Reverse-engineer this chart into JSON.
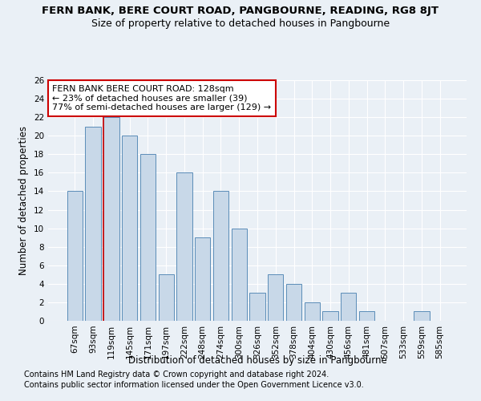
{
  "title": "FERN BANK, BERE COURT ROAD, PANGBOURNE, READING, RG8 8JT",
  "subtitle": "Size of property relative to detached houses in Pangbourne",
  "xlabel": "Distribution of detached houses by size in Pangbourne",
  "ylabel": "Number of detached properties",
  "categories": [
    "67sqm",
    "93sqm",
    "119sqm",
    "145sqm",
    "171sqm",
    "197sqm",
    "222sqm",
    "248sqm",
    "274sqm",
    "300sqm",
    "326sqm",
    "352sqm",
    "378sqm",
    "404sqm",
    "430sqm",
    "456sqm",
    "481sqm",
    "507sqm",
    "533sqm",
    "559sqm",
    "585sqm"
  ],
  "values": [
    14,
    21,
    22,
    20,
    18,
    5,
    16,
    9,
    14,
    10,
    3,
    5,
    4,
    2,
    1,
    3,
    1,
    0,
    0,
    1,
    0
  ],
  "bar_color": "#c8d8e8",
  "bar_edge_color": "#5b8db8",
  "red_line_x": 1.575,
  "annotation_text": "FERN BANK BERE COURT ROAD: 128sqm\n← 23% of detached houses are smaller (39)\n77% of semi-detached houses are larger (129) →",
  "annotation_box_color": "#ffffff",
  "annotation_box_edge": "#cc0000",
  "red_line_color": "#cc0000",
  "ylim": [
    0,
    26
  ],
  "yticks": [
    0,
    2,
    4,
    6,
    8,
    10,
    12,
    14,
    16,
    18,
    20,
    22,
    24,
    26
  ],
  "footnote1": "Contains HM Land Registry data © Crown copyright and database right 2024.",
  "footnote2": "Contains public sector information licensed under the Open Government Licence v3.0.",
  "background_color": "#eaf0f6",
  "grid_color": "#ffffff",
  "title_fontsize": 9.5,
  "subtitle_fontsize": 9,
  "axis_label_fontsize": 8.5,
  "tick_fontsize": 7.5,
  "annotation_fontsize": 8,
  "footnote_fontsize": 7
}
